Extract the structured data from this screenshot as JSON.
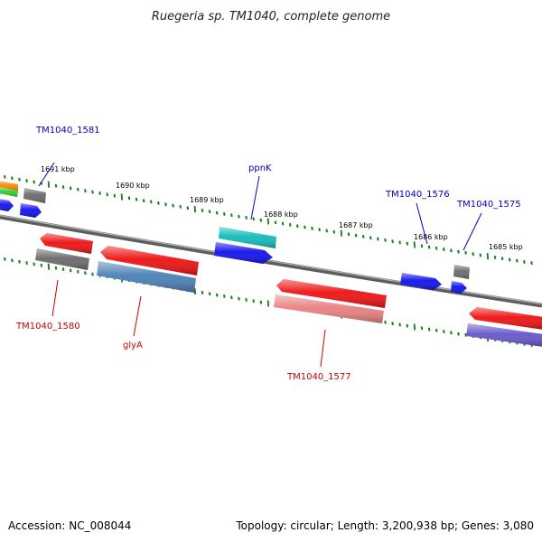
{
  "title": "Ruegeria sp. TM1040, complete genome",
  "footer": {
    "accession": "Accession: NC_008044",
    "summary": "Topology: circular; Length: 3,200,938 bp; Genes: 3,080"
  },
  "ruler": {
    "labels": [
      "1691 kbp",
      "1690 kbp",
      "1689 kbp",
      "1688 kbp",
      "1687 kbp",
      "1686 kbp",
      "1685 kbp"
    ]
  },
  "genes": {
    "forward": [
      {
        "name": "TM1040_1581"
      },
      {
        "name": "ppnK"
      },
      {
        "name": "TM1040_1576"
      },
      {
        "name": "TM1040_1575"
      }
    ],
    "reverse": [
      {
        "name": "TM1040_1580"
      },
      {
        "name": "glyA"
      },
      {
        "name": "TM1040_1577"
      }
    ]
  },
  "colors": {
    "forward_label": "#0000cc",
    "reverse_label": "#cc0000",
    "tick": "#1a7a1a",
    "backbone": "#7a7a7a",
    "red": "#ee1111",
    "blue": "#1111ee",
    "gray": "#707070",
    "cyan": "#11bbbb",
    "steelblue": "#4a7fb5",
    "pink": "#e88080",
    "purple": "#6655cc",
    "orange": "#ff8800",
    "green": "#33cc33"
  }
}
